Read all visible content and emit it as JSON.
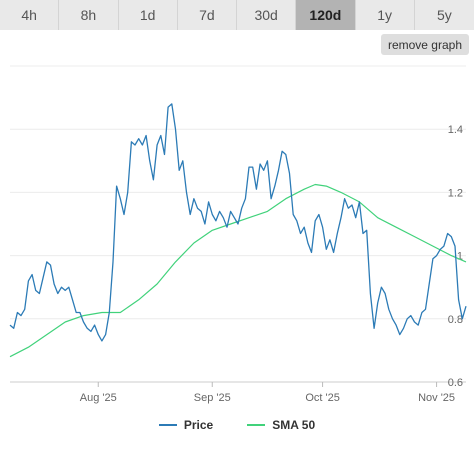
{
  "tabs": [
    {
      "label": "4h",
      "active": false
    },
    {
      "label": "8h",
      "active": false
    },
    {
      "label": "1d",
      "active": false
    },
    {
      "label": "7d",
      "active": false
    },
    {
      "label": "30d",
      "active": false
    },
    {
      "label": "120d",
      "active": true
    },
    {
      "label": "1y",
      "active": false
    },
    {
      "label": "5y",
      "active": false
    }
  ],
  "remove_graph_label": "remove graph",
  "chart_data": {
    "type": "line",
    "x_ticks": [
      {
        "label": "Aug '25",
        "day": 24
      },
      {
        "label": "Sep '25",
        "day": 55
      },
      {
        "label": "Oct '25",
        "day": 85
      },
      {
        "label": "Nov '25",
        "day": 116
      }
    ],
    "y_ticks": [
      "0.6",
      "0.8",
      "1",
      "1.2",
      "1.4"
    ],
    "ylim": [
      0.6,
      1.6
    ],
    "xlim": [
      0,
      124
    ],
    "grid": true,
    "legend_position": "bottom",
    "series": [
      {
        "name": "Price",
        "color": "#2c7bb6",
        "values": [
          [
            0,
            0.78
          ],
          [
            1,
            0.77
          ],
          [
            2,
            0.82
          ],
          [
            3,
            0.81
          ],
          [
            4,
            0.83
          ],
          [
            5,
            0.92
          ],
          [
            6,
            0.94
          ],
          [
            7,
            0.89
          ],
          [
            8,
            0.88
          ],
          [
            9,
            0.93
          ],
          [
            10,
            0.98
          ],
          [
            11,
            0.97
          ],
          [
            12,
            0.91
          ],
          [
            13,
            0.88
          ],
          [
            14,
            0.9
          ],
          [
            15,
            0.89
          ],
          [
            16,
            0.9
          ],
          [
            17,
            0.86
          ],
          [
            18,
            0.82
          ],
          [
            19,
            0.82
          ],
          [
            20,
            0.79
          ],
          [
            21,
            0.77
          ],
          [
            22,
            0.76
          ],
          [
            23,
            0.78
          ],
          [
            24,
            0.75
          ],
          [
            25,
            0.73
          ],
          [
            26,
            0.75
          ],
          [
            27,
            0.82
          ],
          [
            28,
            0.98
          ],
          [
            29,
            1.22
          ],
          [
            30,
            1.18
          ],
          [
            31,
            1.13
          ],
          [
            32,
            1.2
          ],
          [
            33,
            1.36
          ],
          [
            34,
            1.35
          ],
          [
            35,
            1.37
          ],
          [
            36,
            1.35
          ],
          [
            37,
            1.38
          ],
          [
            38,
            1.3
          ],
          [
            39,
            1.24
          ],
          [
            40,
            1.35
          ],
          [
            41,
            1.38
          ],
          [
            42,
            1.32
          ],
          [
            43,
            1.47
          ],
          [
            44,
            1.48
          ],
          [
            45,
            1.4
          ],
          [
            46,
            1.27
          ],
          [
            47,
            1.3
          ],
          [
            48,
            1.2
          ],
          [
            49,
            1.13
          ],
          [
            50,
            1.18
          ],
          [
            51,
            1.15
          ],
          [
            52,
            1.14
          ],
          [
            53,
            1.1
          ],
          [
            54,
            1.17
          ],
          [
            55,
            1.13
          ],
          [
            56,
            1.11
          ],
          [
            57,
            1.14
          ],
          [
            58,
            1.12
          ],
          [
            59,
            1.09
          ],
          [
            60,
            1.14
          ],
          [
            61,
            1.12
          ],
          [
            62,
            1.1
          ],
          [
            63,
            1.15
          ],
          [
            64,
            1.18
          ],
          [
            65,
            1.28
          ],
          [
            66,
            1.28
          ],
          [
            67,
            1.21
          ],
          [
            68,
            1.29
          ],
          [
            69,
            1.27
          ],
          [
            70,
            1.3
          ],
          [
            71,
            1.18
          ],
          [
            72,
            1.22
          ],
          [
            73,
            1.27
          ],
          [
            74,
            1.33
          ],
          [
            75,
            1.32
          ],
          [
            76,
            1.26
          ],
          [
            77,
            1.13
          ],
          [
            78,
            1.11
          ],
          [
            79,
            1.07
          ],
          [
            80,
            1.09
          ],
          [
            81,
            1.04
          ],
          [
            82,
            1.01
          ],
          [
            83,
            1.11
          ],
          [
            84,
            1.13
          ],
          [
            85,
            1.09
          ],
          [
            86,
            1.02
          ],
          [
            87,
            1.05
          ],
          [
            88,
            1.01
          ],
          [
            89,
            1.07
          ],
          [
            90,
            1.12
          ],
          [
            91,
            1.18
          ],
          [
            92,
            1.15
          ],
          [
            93,
            1.16
          ],
          [
            94,
            1.12
          ],
          [
            95,
            1.17
          ],
          [
            96,
            1.07
          ],
          [
            97,
            1.08
          ],
          [
            98,
            0.88
          ],
          [
            99,
            0.77
          ],
          [
            100,
            0.85
          ],
          [
            101,
            0.9
          ],
          [
            102,
            0.88
          ],
          [
            103,
            0.83
          ],
          [
            104,
            0.8
          ],
          [
            105,
            0.78
          ],
          [
            106,
            0.75
          ],
          [
            107,
            0.77
          ],
          [
            108,
            0.8
          ],
          [
            109,
            0.81
          ],
          [
            110,
            0.79
          ],
          [
            111,
            0.78
          ],
          [
            112,
            0.82
          ],
          [
            113,
            0.83
          ],
          [
            114,
            0.91
          ],
          [
            115,
            0.99
          ],
          [
            116,
            1.0
          ],
          [
            117,
            1.02
          ],
          [
            118,
            1.03
          ],
          [
            119,
            1.07
          ],
          [
            120,
            1.06
          ],
          [
            121,
            1.03
          ],
          [
            122,
            0.86
          ],
          [
            123,
            0.8
          ],
          [
            124,
            0.84
          ]
        ]
      },
      {
        "name": "SMA 50",
        "color": "#41d27b",
        "values": [
          [
            0,
            0.68
          ],
          [
            5,
            0.71
          ],
          [
            10,
            0.75
          ],
          [
            15,
            0.79
          ],
          [
            20,
            0.81
          ],
          [
            25,
            0.82
          ],
          [
            30,
            0.82
          ],
          [
            35,
            0.86
          ],
          [
            40,
            0.91
          ],
          [
            45,
            0.98
          ],
          [
            50,
            1.04
          ],
          [
            55,
            1.08
          ],
          [
            60,
            1.1
          ],
          [
            65,
            1.12
          ],
          [
            70,
            1.14
          ],
          [
            75,
            1.18
          ],
          [
            80,
            1.21
          ],
          [
            83,
            1.225
          ],
          [
            86,
            1.22
          ],
          [
            90,
            1.2
          ],
          [
            95,
            1.17
          ],
          [
            100,
            1.12
          ],
          [
            105,
            1.09
          ],
          [
            110,
            1.06
          ],
          [
            115,
            1.03
          ],
          [
            120,
            1.0
          ],
          [
            124,
            0.98
          ]
        ]
      }
    ]
  }
}
